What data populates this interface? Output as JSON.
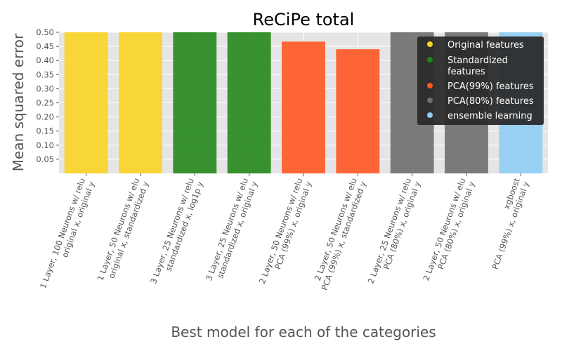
{
  "chart_data": {
    "type": "bar",
    "title": "ReCiPe total",
    "xlabel": "Best model for each of the categories",
    "ylabel": "Mean squared error",
    "ylim": [
      0,
      0.5
    ],
    "yticks": [
      "0.05",
      "0.10",
      "0.15",
      "0.20",
      "0.25",
      "0.30",
      "0.35",
      "0.40",
      "0.45",
      "0.50"
    ],
    "grid": true,
    "legend_position": "top-right",
    "categories": [
      [
        "1 Layer, 100 Neurons w/ relu",
        "original x, original y"
      ],
      [
        "1 Layer, 50 Neurons w/ elu",
        "original x, standardized y"
      ],
      [
        "3 Layer, 25 Neurons w/ relu",
        "standardized x, log1p y"
      ],
      [
        "3 Layer, 25 Neurons w/ elu",
        "standardized x, original y"
      ],
      [
        "2 Layer, 50 Neurons w/ relu",
        "PCA (99%) x, original y"
      ],
      [
        "2 Layer, 50 Neurons w/ elu",
        "PCA (99%) x, standardized y"
      ],
      [
        "2 Layer, 25 Neurons w/ relu",
        "PCA (80%) x, original y"
      ],
      [
        "2 Layer, 50 Neurons w/ elu",
        "PCA (80%) x, original y"
      ],
      [
        "xgboost",
        "PCA (99%) x, original y"
      ]
    ],
    "values": [
      0.5,
      0.5,
      0.5,
      0.5,
      0.467,
      0.44,
      0.5,
      0.5,
      0.5
    ],
    "bar_groups": [
      0,
      0,
      1,
      1,
      2,
      2,
      3,
      3,
      4
    ],
    "legend": [
      {
        "label": [
          "Original features"
        ],
        "color": "#f9d423"
      },
      {
        "label": [
          "Standardized",
          "features"
        ],
        "color": "#22871a"
      },
      {
        "label": [
          "PCA(99%) features"
        ],
        "color": "#ff5722"
      },
      {
        "label": [
          "PCA(80%) features"
        ],
        "color": "#6e6e6e"
      },
      {
        "label": [
          "ensemble learning"
        ],
        "color": "#8ecdf4"
      }
    ],
    "colors": {
      "background": "#e5e5e5",
      "grid": "#ffffff",
      "legend_background": "#2b2b2b"
    }
  }
}
